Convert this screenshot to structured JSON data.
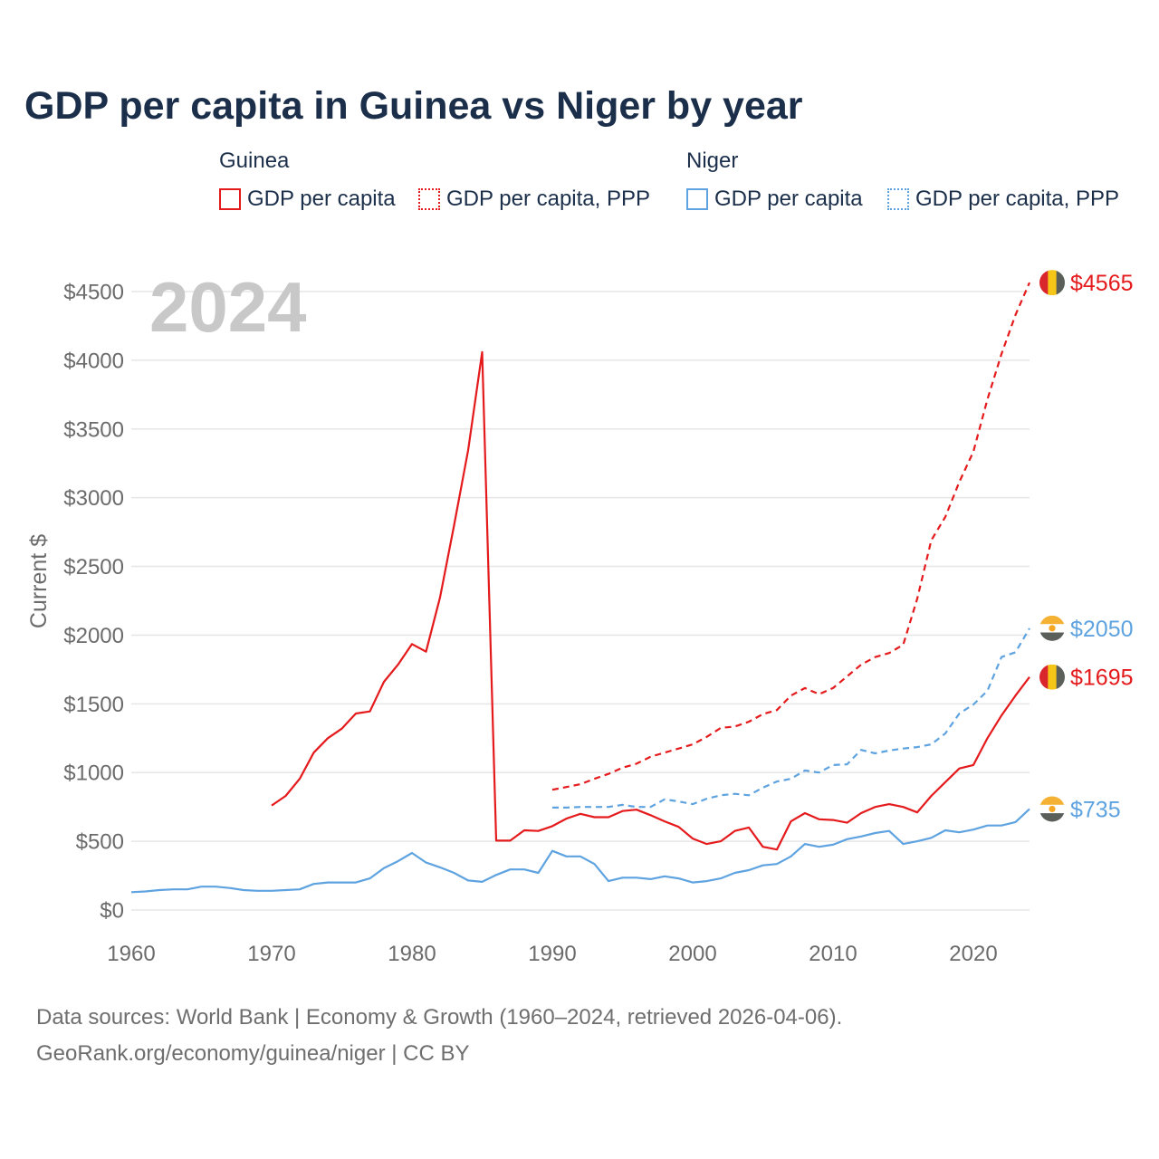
{
  "chart_data": {
    "type": "line",
    "title": "GDP per capita in Guinea vs Niger by year",
    "annotation": "2024",
    "xlabel": "",
    "ylabel": "Current $",
    "xlim": [
      1960,
      2024
    ],
    "ylim": [
      0,
      4500
    ],
    "x_ticks": [
      1960,
      1970,
      1980,
      1990,
      2000,
      2010,
      2020
    ],
    "y_ticks": [
      0,
      500,
      1000,
      1500,
      2000,
      2500,
      3000,
      3500,
      4000,
      4500
    ],
    "y_tick_labels": [
      "$0",
      "$500",
      "$1000",
      "$1500",
      "$2000",
      "$2500",
      "$3000",
      "$3500",
      "$4000",
      "$4500"
    ],
    "grid": true,
    "legend": [
      {
        "group": "Guinea",
        "items": [
          "GDP per capita",
          "GDP per capita, PPP"
        ]
      },
      {
        "group": "Niger",
        "items": [
          "GDP per capita",
          "GDP per capita, PPP"
        ]
      }
    ],
    "series": [
      {
        "legend_ref": [
          0,
          0
        ],
        "dashed": false,
        "color": "#e41a1c",
        "flag_icon": "guinea-flag-icon",
        "x_start": 1970,
        "values": [
          760,
          830,
          955,
          1145,
          1250,
          1320,
          1430,
          1445,
          1660,
          1785,
          1935,
          1880,
          2275,
          2800,
          3345,
          4060,
          505,
          505,
          580,
          575,
          610,
          665,
          700,
          675,
          675,
          720,
          730,
          690,
          645,
          605,
          520,
          480,
          500,
          575,
          600,
          460,
          440,
          645,
          705,
          660,
          655,
          635,
          705,
          750,
          770,
          750,
          710,
          830,
          930,
          1030,
          1055,
          1250,
          1415,
          1560,
          1695
        ],
        "end_label": "$1695"
      },
      {
        "legend_ref": [
          0,
          1
        ],
        "dashed": true,
        "color": "#e41a1c",
        "flag_icon": "guinea-flag-icon",
        "x_start": 1990,
        "values": [
          875,
          895,
          915,
          955,
          990,
          1035,
          1065,
          1115,
          1145,
          1175,
          1205,
          1260,
          1325,
          1335,
          1370,
          1425,
          1455,
          1560,
          1615,
          1570,
          1615,
          1700,
          1785,
          1840,
          1870,
          1930,
          2265,
          2690,
          2860,
          3115,
          3335,
          3715,
          4045,
          4330,
          4565
        ],
        "end_label": "$4565"
      },
      {
        "legend_ref": [
          1,
          0
        ],
        "dashed": false,
        "color": "#5ea3e0",
        "flag_icon": "niger-flag-icon",
        "x_start": 1960,
        "values": [
          130,
          135,
          145,
          150,
          150,
          170,
          170,
          160,
          145,
          140,
          140,
          145,
          150,
          190,
          200,
          200,
          200,
          230,
          305,
          355,
          415,
          345,
          310,
          270,
          215,
          205,
          255,
          295,
          295,
          270,
          430,
          390,
          390,
          335,
          210,
          235,
          235,
          225,
          245,
          230,
          200,
          210,
          230,
          270,
          290,
          325,
          335,
          390,
          480,
          460,
          475,
          515,
          535,
          560,
          575,
          480,
          500,
          525,
          580,
          565,
          585,
          615,
          615,
          640,
          735
        ],
        "end_label": "$735"
      },
      {
        "legend_ref": [
          1,
          1
        ],
        "dashed": true,
        "color": "#5ea3e0",
        "flag_icon": "niger-flag-icon",
        "x_start": 1990,
        "values": [
          745,
          745,
          750,
          750,
          750,
          765,
          750,
          750,
          805,
          790,
          770,
          810,
          835,
          845,
          835,
          890,
          935,
          955,
          1015,
          1000,
          1055,
          1060,
          1165,
          1140,
          1160,
          1175,
          1185,
          1205,
          1285,
          1430,
          1495,
          1595,
          1840,
          1875,
          2050
        ],
        "end_label": "$2050"
      }
    ]
  },
  "footer": {
    "sources": "Data sources: World Bank | Economy & Growth (1960–2024, retrieved 2026-04-06).",
    "link": "GeoRank.org/economy/guinea/niger | CC BY"
  },
  "flags": {
    "guinea-flag-icon": {
      "vertical": true,
      "bands": [
        "#d9262c",
        "#f5c518",
        "#5a5f5a"
      ]
    },
    "niger-flag-icon": {
      "vertical": false,
      "bands": [
        "#f5b133",
        "#ffffff",
        "#5a5f5a"
      ],
      "emblem": "#f5a623"
    }
  },
  "colors": {
    "grid": "#e6e6e6",
    "title": "#1b2f4b",
    "muted_text": "#6b6b6b"
  }
}
